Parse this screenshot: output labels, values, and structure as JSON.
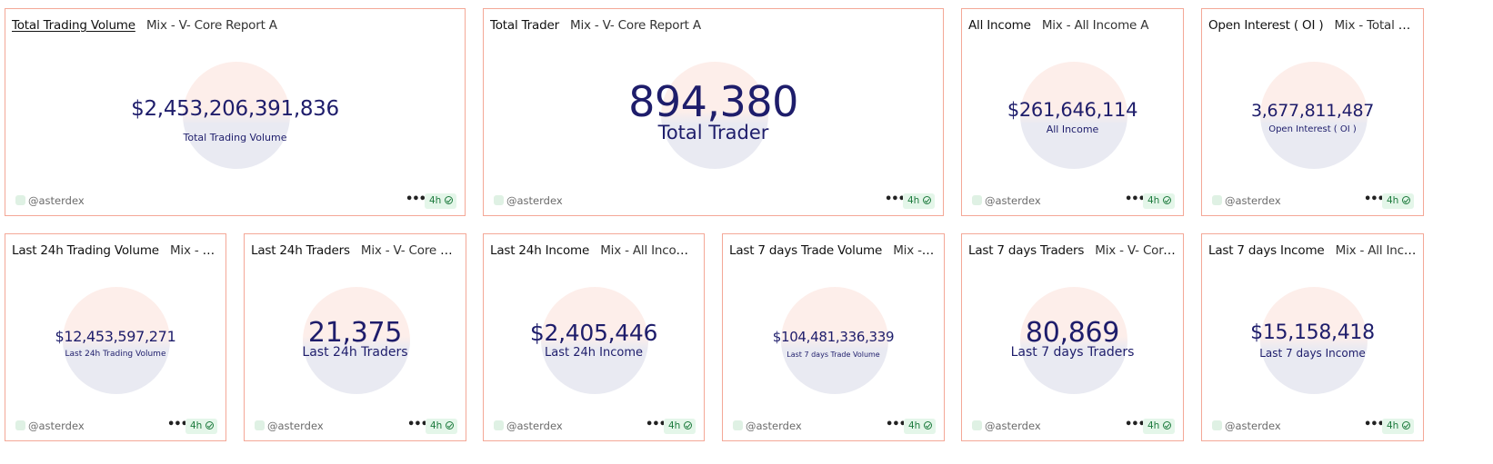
{
  "cards": [
    {
      "title": "Total Trading Volume",
      "subtitle": "Mix - V- Core Report A",
      "value": "$2,453,206,391,836",
      "label": "Total Trading Volume",
      "user": "@asterdex",
      "refresh": "4h"
    },
    {
      "title": "Total Trader",
      "subtitle": "Mix - V- Core Report A",
      "value": "894,380",
      "label": "Total Trader",
      "user": "@asterdex",
      "refresh": "4h"
    },
    {
      "title": "All Income",
      "subtitle": "Mix - All Income A",
      "value": "$261,646,114",
      "label": "All Income",
      "user": "@asterdex",
      "refresh": "4h"
    },
    {
      "title": "Open Interest ( OI )",
      "subtitle": "Mix - Total Ope...",
      "value": "3,677,811,487",
      "label": "Open Interest ( OI )",
      "user": "@asterdex",
      "refresh": "4h"
    },
    {
      "title": "Last 24h Trading Volume",
      "subtitle": "Mix - V- ...",
      "value": "$12,453,597,271",
      "label": "Last 24h Trading Volume",
      "user": "@asterdex",
      "refresh": "4h"
    },
    {
      "title": "Last 24h Traders",
      "subtitle": "Mix - V- Core Re...",
      "value": "21,375",
      "label": "Last 24h Traders",
      "user": "@asterdex",
      "refresh": "4h"
    },
    {
      "title": "Last 24h Income",
      "subtitle": "Mix - All Income A",
      "value": "$2,405,446",
      "label": "Last 24h Income",
      "user": "@asterdex",
      "refresh": "4h"
    },
    {
      "title": "Last 7 days Trade Volume",
      "subtitle": "Mix - V- ...",
      "value": "$104,481,336,339",
      "label": "Last 7 days Trade Volume",
      "user": "@asterdex",
      "refresh": "4h"
    },
    {
      "title": "Last 7 days Traders",
      "subtitle": "Mix - V- Core ...",
      "value": "80,869",
      "label": "Last 7 days Traders",
      "user": "@asterdex",
      "refresh": "4h"
    },
    {
      "title": "Last 7 days Income",
      "subtitle": "Mix - All Income",
      "value": "$15,158,418",
      "label": "Last 7 days Income",
      "user": "@asterdex",
      "refresh": "4h"
    }
  ],
  "icons": {
    "more": "more-horizontal-icon",
    "status": "check-circle-icon"
  },
  "colors": {
    "card_border": "#f4a897",
    "metric_text": "#1e1d6b",
    "badge_bg": "#e4f6e9",
    "badge_text": "#1d7a3d"
  }
}
